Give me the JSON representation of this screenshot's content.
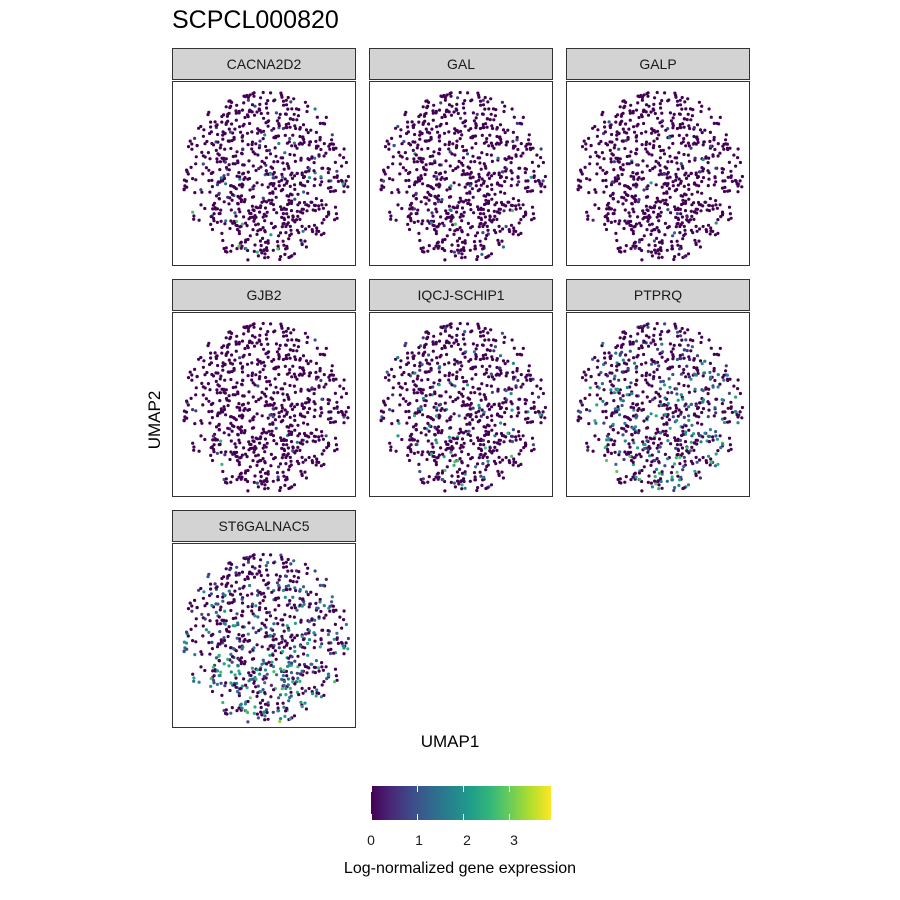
{
  "chart_data": {
    "type": "scatter",
    "title": "SCPCL000820",
    "xlabel": "UMAP1",
    "ylabel": "UMAP2",
    "legend": {
      "title": "Log-normalized gene expression",
      "position": "bottom",
      "ticks": [
        "0",
        "1",
        "2",
        "3"
      ],
      "tick_values": [
        0,
        1,
        2,
        3
      ],
      "range": [
        0,
        3.9
      ],
      "colormap": "viridis"
    },
    "colors": {
      "viridis": [
        "#440154",
        "#482878",
        "#3E4A89",
        "#31688E",
        "#26828E",
        "#1F9E89",
        "#35B779",
        "#6DCD59",
        "#B4DE2C",
        "#FDE725"
      ],
      "strip_background": "#d3d3d3",
      "panel_border": "#333333"
    },
    "facets": [
      {
        "gene": "CACNA2D2",
        "expression_level": 0.06
      },
      {
        "gene": "GAL",
        "expression_level": 0.02
      },
      {
        "gene": "GALP",
        "expression_level": 0.02
      },
      {
        "gene": "GJB2",
        "expression_level": 0.01
      },
      {
        "gene": "IQCJ-SCHIP1",
        "expression_level": 0.12
      },
      {
        "gene": "PTPRQ",
        "expression_level": 0.3
      },
      {
        "gene": "ST6GALNAC5",
        "expression_level": 0.42
      }
    ]
  }
}
